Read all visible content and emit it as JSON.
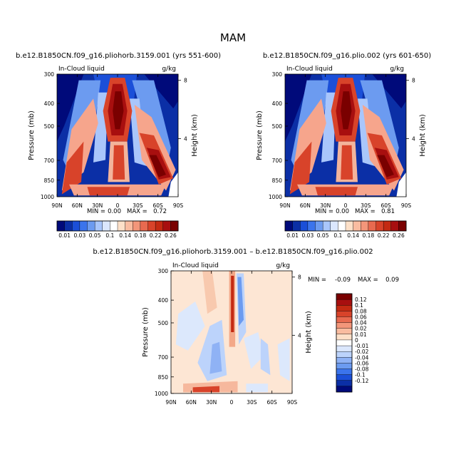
{
  "page_title": "MAM",
  "colors": {
    "dark_blue": "#000a7a",
    "light_blue": "#cfe0ff",
    "peach": "#fde0c8",
    "red": "#c42a12",
    "dark_red": "#7a0000"
  },
  "chart_data": [
    {
      "type": "heatmap",
      "id": "panel-1",
      "title": "b.e12.B1850CN.f09_g16.pliohorb.3159.001 (yrs 551-600)",
      "left_label": "In-Cloud liquid",
      "right_label": "g/kg",
      "ylabel": "Pressure (mb)",
      "ylabel_right": "Height (km)",
      "x_ticks": [
        "90N",
        "60N",
        "30N",
        "0",
        "30S",
        "60S",
        "90S"
      ],
      "y_ticks": [
        "300",
        "400",
        "500",
        "700",
        "850",
        "1000"
      ],
      "y_ticks_right": [
        "8",
        "4"
      ],
      "min_label": "MIN =",
      "min_value": "0.00",
      "max_label": "MAX =",
      "max_value": "0.72",
      "colorbar_labels": [
        "0.01",
        "0.03",
        "0.05",
        "0.1",
        "0.14",
        "0.18",
        "0.22",
        "0.26"
      ]
    },
    {
      "type": "heatmap",
      "id": "panel-2",
      "title": "b.e12.B1850CN.f09_g16.plio.002 (yrs 601-650)",
      "left_label": "In-Cloud liquid",
      "right_label": "g/kg",
      "ylabel": "Pressure (mb)",
      "ylabel_right": "Height (km)",
      "x_ticks": [
        "90N",
        "60N",
        "30N",
        "0",
        "30S",
        "60S",
        "90S"
      ],
      "y_ticks": [
        "300",
        "400",
        "500",
        "700",
        "850",
        "1000"
      ],
      "y_ticks_right": [
        "8",
        "4"
      ],
      "min_label": "MIN =",
      "min_value": "0.00",
      "max_label": "MAX =",
      "max_value": "0.81",
      "colorbar_labels": [
        "0.01",
        "0.03",
        "0.05",
        "0.1",
        "0.14",
        "0.18",
        "0.22",
        "0.26"
      ]
    },
    {
      "type": "heatmap",
      "id": "panel-diff",
      "title": "b.e12.B1850CN.f09_g16.pliohorb.3159.001 – b.e12.B1850CN.f09_g16.plio.002",
      "left_label": "In-Cloud liquid",
      "right_label": "g/kg",
      "ylabel": "Pressure (mb)",
      "ylabel_right": "Height (km)",
      "x_ticks": [
        "90N",
        "60N",
        "30N",
        "0",
        "30S",
        "60S",
        "90S"
      ],
      "y_ticks": [
        "300",
        "400",
        "500",
        "700",
        "850",
        "1000"
      ],
      "y_ticks_right": [
        "8",
        "4"
      ],
      "min_label": "MIN =",
      "min_value": "-0.09",
      "max_label": "MAX =",
      "max_value": "0.09",
      "colorbar_labels": [
        "0.12",
        "0.1",
        "0.08",
        "0.06",
        "0.04",
        "0.02",
        "0.01",
        "0",
        "-0.01",
        "-0.02",
        "-0.04",
        "-0.06",
        "-0.08",
        "-0.1",
        "-0.12"
      ]
    }
  ]
}
